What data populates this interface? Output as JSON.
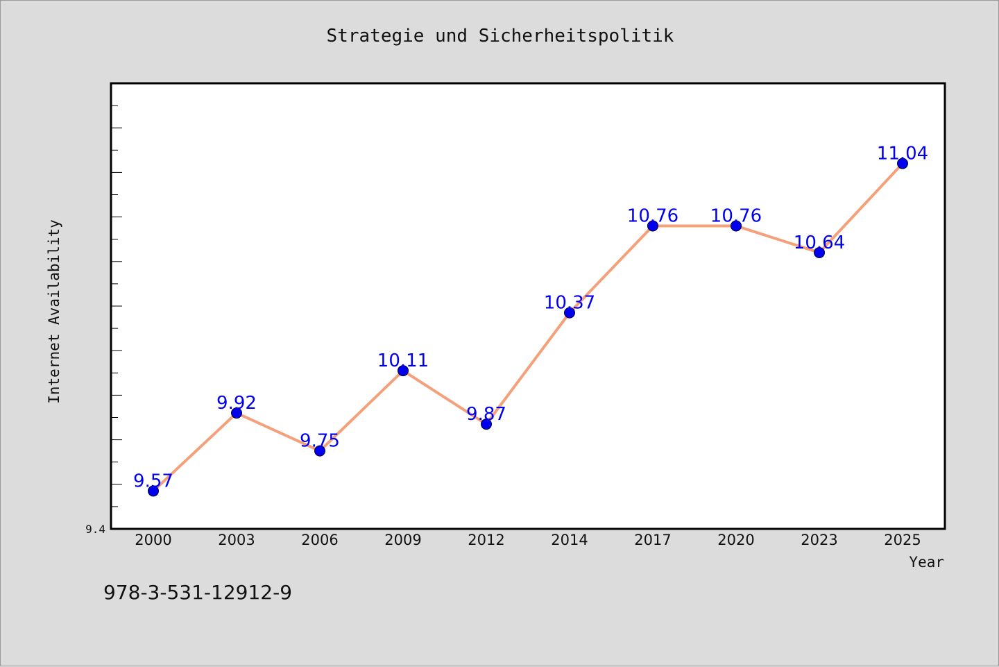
{
  "footer": {
    "isbn": "978-3-531-12912-9"
  },
  "chart_data": {
    "type": "line",
    "title": "Strategie und Sicherheitspolitik",
    "xlabel": "Year",
    "ylabel": "Internet Availability",
    "categories": [
      "2000",
      "2003",
      "2006",
      "2009",
      "2012",
      "2014",
      "2017",
      "2020",
      "2023",
      "2025"
    ],
    "series": [
      {
        "values": [
          9.57,
          9.92,
          9.75,
          10.11,
          9.87,
          10.37,
          10.76,
          10.76,
          10.64,
          11.04
        ],
        "line_color": "#f4a07a",
        "marker_color": "#0000ee"
      }
    ],
    "ylim": [
      9.4,
      11.4
    ],
    "yticks_labeled": [
      "9.4"
    ],
    "grid": false,
    "data_labels": true
  }
}
